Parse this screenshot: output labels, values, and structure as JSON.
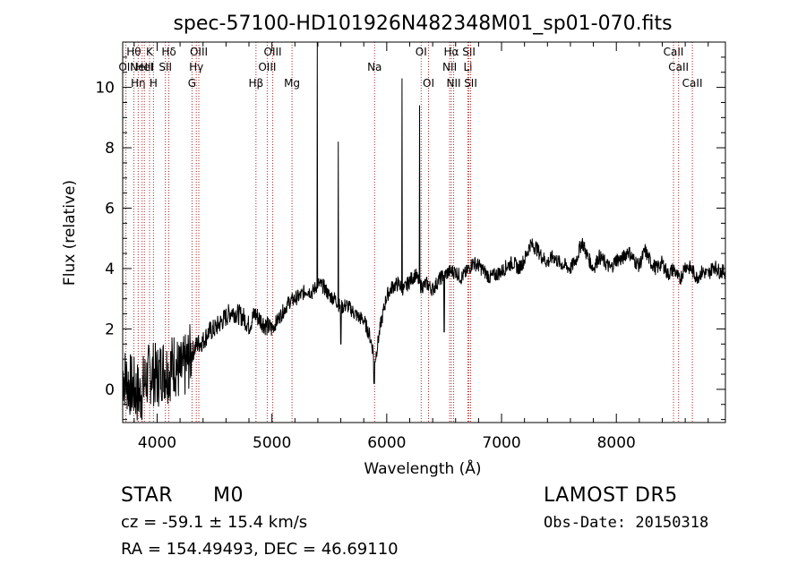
{
  "chart_data": {
    "type": "line",
    "title": "spec-57100-HD101926N482348M01_sp01-070.fits",
    "xlabel": "Wavelength (Å)",
    "ylabel": "Flux (relative)",
    "xlim": [
      3700,
      8950
    ],
    "ylim": [
      -1.1,
      11.5
    ],
    "xticks": [
      4000,
      5000,
      6000,
      7000,
      8000
    ],
    "xtick_labels": [
      "4000",
      "5000",
      "6000",
      "7000",
      "8000"
    ],
    "yticks": [
      0,
      2,
      4,
      6,
      8,
      10
    ],
    "ytick_labels": [
      "0",
      "2",
      "4",
      "6",
      "8",
      "10"
    ],
    "grid": false,
    "series": [
      {
        "x": [
          3700,
          3750,
          3800,
          3850,
          3900,
          3950,
          4000,
          4050,
          4100,
          4150,
          4200,
          4250,
          4300,
          4350,
          4400,
          4450,
          4500,
          4550,
          4600,
          4650,
          4700,
          4750,
          4800,
          4850,
          4900,
          4950,
          5000,
          5050,
          5100,
          5150,
          5200,
          5250,
          5300,
          5350,
          5400,
          5450,
          5500,
          5550,
          5600,
          5650,
          5700,
          5750,
          5800,
          5850,
          5900,
          5950,
          6000,
          6050,
          6100,
          6150,
          6200,
          6250,
          6300,
          6350,
          6400,
          6450,
          6500,
          6550,
          6600,
          6650,
          6700,
          6750,
          6800,
          6850,
          6900,
          6950,
          7000,
          7050,
          7100,
          7150,
          7200,
          7250,
          7300,
          7350,
          7400,
          7450,
          7500,
          7550,
          7600,
          7650,
          7700,
          7750,
          7800,
          7850,
          7900,
          7950,
          8000,
          8050,
          8100,
          8150,
          8200,
          8250,
          8300,
          8350,
          8400,
          8450,
          8500,
          8550,
          8600,
          8650,
          8700,
          8750,
          8800,
          8850,
          8900
        ],
        "y": [
          0.5,
          0.2,
          0.0,
          -0.2,
          0.3,
          0.6,
          0.4,
          0.7,
          0.6,
          0.9,
          0.5,
          0.8,
          1.2,
          1.5,
          1.6,
          1.9,
          2.0,
          2.2,
          2.4,
          2.6,
          2.5,
          2.4,
          2.1,
          2.5,
          2.3,
          2.1,
          2.0,
          2.3,
          2.6,
          2.9,
          3.0,
          3.1,
          3.3,
          3.2,
          3.5,
          3.4,
          3.1,
          3.0,
          2.7,
          2.8,
          2.6,
          2.4,
          2.3,
          1.8,
          1.0,
          2.2,
          3.1,
          3.4,
          3.5,
          3.3,
          3.6,
          3.8,
          3.4,
          3.5,
          3.3,
          3.6,
          3.8,
          3.9,
          3.9,
          3.7,
          3.9,
          4.2,
          4.1,
          3.9,
          3.7,
          3.8,
          3.9,
          4.1,
          4.2,
          4.0,
          4.3,
          4.8,
          4.7,
          4.4,
          4.2,
          4.4,
          4.2,
          4.1,
          4.0,
          4.3,
          4.9,
          4.4,
          4.0,
          4.4,
          4.2,
          4.0,
          4.3,
          4.3,
          4.6,
          4.3,
          4.1,
          4.6,
          4.2,
          4.0,
          4.2,
          3.8,
          4.0,
          3.6,
          4.1,
          4.0,
          3.7,
          3.9,
          3.8,
          4.1,
          3.9
        ],
        "emission_peaks": [
          {
            "x": 5395,
            "y": 11.5
          },
          {
            "x": 5578,
            "y": 8.2
          },
          {
            "x": 6132,
            "y": 10.3
          },
          {
            "x": 6285,
            "y": 9.4
          }
        ],
        "absorption_dips": [
          {
            "x": 5600,
            "y": 1.5
          },
          {
            "x": 5890,
            "y": 0.2
          },
          {
            "x": 6500,
            "y": 1.9
          }
        ]
      }
    ],
    "line_markers": [
      {
        "x": 3728,
        "label": "OII",
        "row": 2
      },
      {
        "x": 3797,
        "label": "Hθ",
        "row": 1
      },
      {
        "x": 3835,
        "label": "Hη",
        "row": 3
      },
      {
        "x": 3869,
        "label": "NeIII",
        "row": 2
      },
      {
        "x": 3889,
        "label": "HeI",
        "row": 2
      },
      {
        "x": 3934,
        "label": "K",
        "row": 1
      },
      {
        "x": 3968,
        "label": "H",
        "row": 3
      },
      {
        "x": 4072,
        "label": "SII",
        "row": 2
      },
      {
        "x": 4102,
        "label": "Hδ",
        "row": 1
      },
      {
        "x": 4304,
        "label": "G",
        "row": 3
      },
      {
        "x": 4341,
        "label": "Hγ",
        "row": 2
      },
      {
        "x": 4363,
        "label": "OIII",
        "row": 1
      },
      {
        "x": 4861,
        "label": "Hβ",
        "row": 3
      },
      {
        "x": 4959,
        "label": "OIII",
        "row": 2
      },
      {
        "x": 5007,
        "label": "OIII",
        "row": 1
      },
      {
        "x": 5175,
        "label": "Mg",
        "row": 3
      },
      {
        "x": 5894,
        "label": "Na",
        "row": 2
      },
      {
        "x": 6300,
        "label": "OI",
        "row": 1
      },
      {
        "x": 6364,
        "label": "OI",
        "row": 3
      },
      {
        "x": 6548,
        "label": "NII",
        "row": 2
      },
      {
        "x": 6563,
        "label": "Hα",
        "row": 1
      },
      {
        "x": 6583,
        "label": "NII",
        "row": 3
      },
      {
        "x": 6707,
        "label": "Li",
        "row": 2
      },
      {
        "x": 6716,
        "label": "SII",
        "row": 1
      },
      {
        "x": 6731,
        "label": "SII",
        "row": 3
      },
      {
        "x": 8498,
        "label": "CaII",
        "row": 1
      },
      {
        "x": 8542,
        "label": "CaII",
        "row": 2
      },
      {
        "x": 8662,
        "label": "CaII",
        "row": 3
      }
    ]
  },
  "info": {
    "object_class": "STAR",
    "subclass": "M0",
    "survey": "LAMOST DR5",
    "velocity": "cz = -59.1 ± 15.4 km/s",
    "obs_date": "Obs-Date: 20150318",
    "coords": "RA = 154.49493, DEC =  46.69110"
  },
  "colors": {
    "spectrum": "#000000",
    "marker_line": "#b22222",
    "axes": "#000000",
    "background": "#ffffff"
  }
}
